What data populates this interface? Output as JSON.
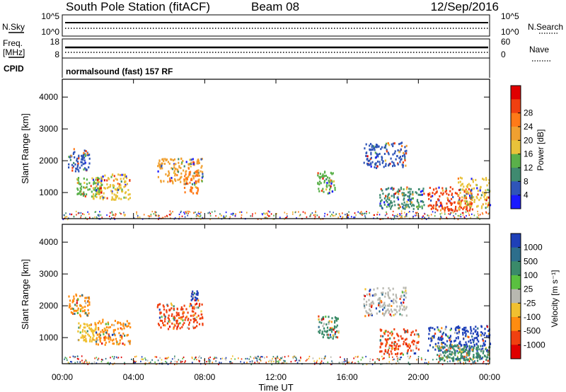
{
  "header": {
    "station": "South Pole Station (fitACF)",
    "beam": "Beam 08",
    "date": "12/Sep/2016"
  },
  "top_panels": {
    "nsky_label": "N.Sky",
    "nsky_ticks": [
      "10^5",
      "10^0"
    ],
    "nsearch_label": "N.Search",
    "nsearch_ticks": [
      "10^5",
      "10^0"
    ],
    "freq_label_1": "Freq.",
    "freq_label_2": "[MHz]",
    "freq_ticks": [
      "18",
      "8"
    ],
    "nave_label": "Nave",
    "nave_ticks": [
      "60",
      "0"
    ],
    "cpid_label": "CPID",
    "cpid_text": "normalsound (fast) 157 RF"
  },
  "colorbars": {
    "power": {
      "label": "Power [dB]",
      "ticks": [
        "4",
        "8",
        "12",
        "16",
        "20",
        "24",
        "28"
      ],
      "colors": [
        "#1a1aff",
        "#2f55b8",
        "#3f8a70",
        "#5ab04a",
        "#e8c23a",
        "#f0a030",
        "#ff7a18",
        "#f04010",
        "#e00000"
      ]
    },
    "velocity": {
      "label": "Velocity [m s⁻¹]",
      "ticks": [
        "1000",
        "500",
        "100",
        "25",
        "-25",
        "-100",
        "-500",
        "-1000"
      ],
      "colors": [
        "#1e40b8",
        "#2d6e8c",
        "#3a8a6a",
        "#5ac040",
        "#b8b8b0",
        "#f0c030",
        "#ff8c10",
        "#f04010",
        "#e00000"
      ]
    }
  },
  "chart_data": [
    {
      "type": "heatmap",
      "panel": "power",
      "ylabel": "Slant Range [km]",
      "xlabel": "Time UT",
      "x_ticks": [
        "00:00",
        "04:00",
        "08:00",
        "12:00",
        "16:00",
        "20:00",
        "00:00"
      ],
      "x_range_hours": [
        0,
        24
      ],
      "y_ticks": [
        1000,
        2000,
        3000,
        4000
      ],
      "y_range_km": [
        180,
        4560
      ],
      "colorbar": "power",
      "regions": [
        {
          "t0": 0.3,
          "t1": 1.5,
          "r0": 1700,
          "r1": 2400,
          "color": "#2f55b8"
        },
        {
          "t0": 0.8,
          "t1": 2.2,
          "r0": 900,
          "r1": 1500,
          "color": "#5ab04a"
        },
        {
          "t0": 1.7,
          "t1": 3.8,
          "r0": 800,
          "r1": 1600,
          "color": "#e8c23a"
        },
        {
          "t0": 5.3,
          "t1": 7.9,
          "r0": 1300,
          "r1": 2100,
          "color": "#f0a030"
        },
        {
          "t0": 6.8,
          "t1": 7.6,
          "r0": 1000,
          "r1": 1700,
          "color": "#ff7a18"
        },
        {
          "t0": 14.3,
          "t1": 15.3,
          "r0": 1000,
          "r1": 1700,
          "color": "#5ab04a"
        },
        {
          "t0": 16.9,
          "t1": 19.3,
          "r0": 1800,
          "r1": 2600,
          "color": "#2f55b8"
        },
        {
          "t0": 17.8,
          "t1": 20.3,
          "r0": 500,
          "r1": 1200,
          "color": "#3f8a70"
        },
        {
          "t0": 20.5,
          "t1": 23.0,
          "r0": 450,
          "r1": 1200,
          "color": "#f04010"
        },
        {
          "t0": 22.2,
          "t1": 24.0,
          "r0": 500,
          "r1": 1500,
          "color": "#e8c23a"
        }
      ]
    },
    {
      "type": "heatmap",
      "panel": "velocity",
      "ylabel": "Slant Range [km]",
      "xlabel": "Time UT",
      "x_ticks": [
        "00:00",
        "04:00",
        "08:00",
        "12:00",
        "16:00",
        "20:00",
        "00:00"
      ],
      "x_range_hours": [
        0,
        24
      ],
      "y_ticks": [
        1000,
        2000,
        3000,
        4000
      ],
      "y_range_km": [
        180,
        4560
      ],
      "colorbar": "velocity",
      "regions": [
        {
          "t0": 0.3,
          "t1": 1.5,
          "r0": 1700,
          "r1": 2400,
          "color": "#ff8c10"
        },
        {
          "t0": 0.8,
          "t1": 2.0,
          "r0": 900,
          "r1": 1500,
          "color": "#f0c030"
        },
        {
          "t0": 1.8,
          "t1": 3.8,
          "r0": 800,
          "r1": 1600,
          "color": "#ff8c10"
        },
        {
          "t0": 5.3,
          "t1": 7.9,
          "r0": 1300,
          "r1": 2100,
          "color": "#f04010"
        },
        {
          "t0": 7.2,
          "t1": 7.6,
          "r0": 2200,
          "r1": 2500,
          "color": "#1e40b8"
        },
        {
          "t0": 14.3,
          "t1": 15.5,
          "r0": 1000,
          "r1": 1700,
          "color": "#3a8a6a"
        },
        {
          "t0": 16.9,
          "t1": 19.3,
          "r0": 1700,
          "r1": 2600,
          "color": "#b8b8b0"
        },
        {
          "t0": 17.8,
          "t1": 20.0,
          "r0": 500,
          "r1": 1300,
          "color": "#f04010"
        },
        {
          "t0": 20.5,
          "t1": 24.0,
          "r0": 600,
          "r1": 1400,
          "color": "#1e40b8"
        },
        {
          "t0": 21.0,
          "t1": 24.0,
          "r0": 300,
          "r1": 800,
          "color": "#3a8a6a"
        }
      ]
    }
  ]
}
